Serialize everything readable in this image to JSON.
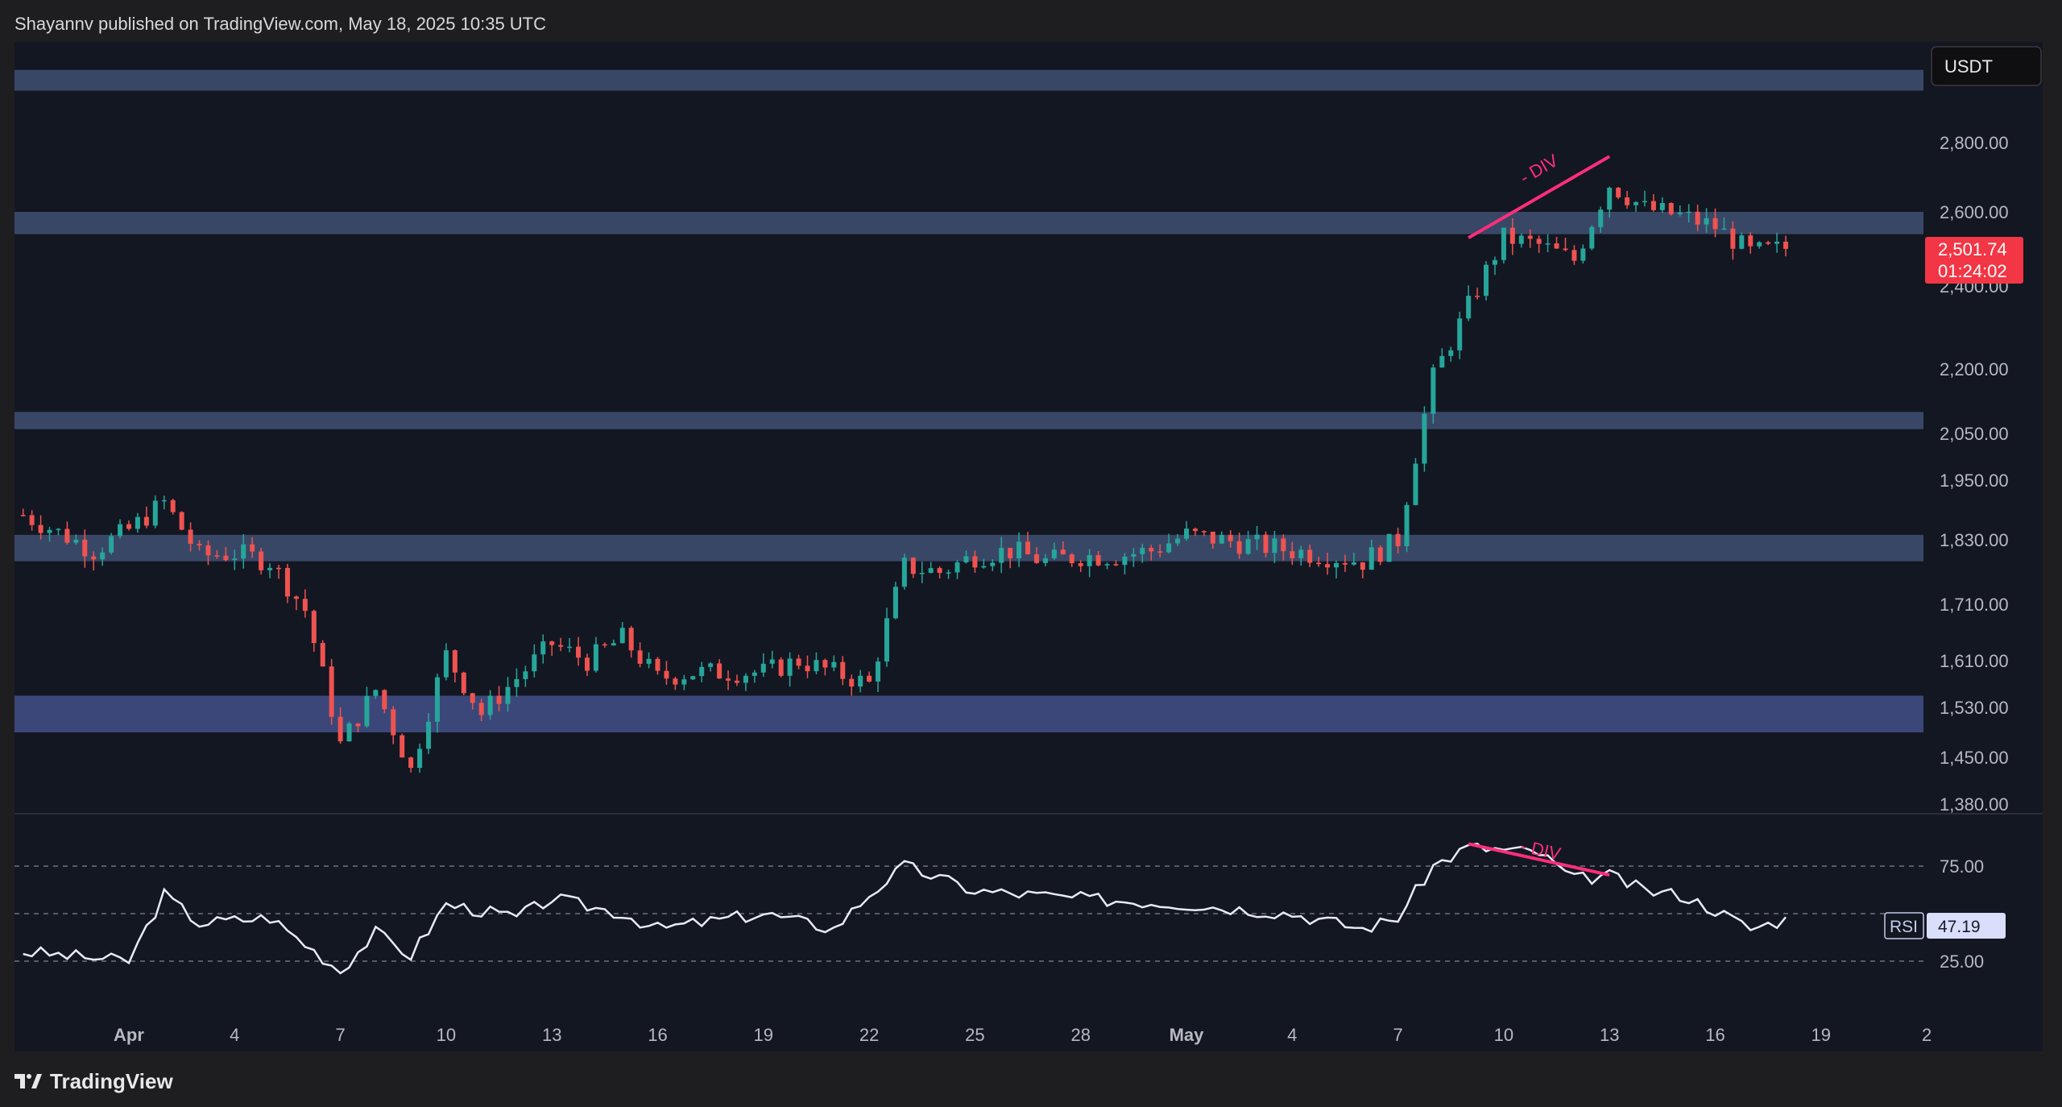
{
  "header": {
    "publisher_line": "Shayannv published on TradingView.com, May 18, 2025 10:35 UTC"
  },
  "footer": {
    "brand": "TradingView"
  },
  "chart_data": {
    "type": "candlestick",
    "currency": "USDT",
    "price_axis_ticks": [
      "2,800.00",
      "2,600.00",
      "2,400.00",
      "2,200.00",
      "2,050.00",
      "1,950.00",
      "1,830.00",
      "1,710.00",
      "1,610.00",
      "1,530.00",
      "1,450.00",
      "1,380.00"
    ],
    "price_axis_values": [
      2800,
      2600,
      2400,
      2200,
      2050,
      1950,
      1830,
      1710,
      1610,
      1530,
      1450,
      1380
    ],
    "current_price": {
      "value": 2501.74,
      "label": "2,501.74",
      "countdown": "01:24:02"
    },
    "time_axis_labels": [
      "Apr",
      "4",
      "7",
      "10",
      "13",
      "16",
      "19",
      "22",
      "25",
      "28",
      "May",
      "4",
      "7",
      "10",
      "13",
      "16",
      "19",
      "2"
    ],
    "zones": [
      {
        "low": 2950,
        "high": 3010
      },
      {
        "low": 2540,
        "high": 2600
      },
      {
        "low": 2060,
        "high": 2100
      },
      {
        "low": 1790,
        "high": 1840
      },
      {
        "low": 1490,
        "high": 1550
      }
    ],
    "price_annotation": {
      "text": "- DIV",
      "from": {
        "x": "May 9",
        "y": 2530
      },
      "to": {
        "x": "May 13",
        "y": 2760
      }
    },
    "candles_summary": [
      {
        "date": "Mar 29",
        "close": 1880
      },
      {
        "date": "Mar 31",
        "close": 1810
      },
      {
        "date": "Apr 1",
        "close": 1850
      },
      {
        "date": "Apr 2",
        "close": 1905
      },
      {
        "date": "Apr 3",
        "close": 1800
      },
      {
        "date": "Apr 4",
        "close": 1805
      },
      {
        "date": "Apr 5",
        "close": 1790
      },
      {
        "date": "Apr 6",
        "close": 1700
      },
      {
        "date": "Apr 7",
        "close": 1470
      },
      {
        "date": "Apr 8",
        "close": 1560
      },
      {
        "date": "Apr 9",
        "close": 1430
      },
      {
        "date": "Apr 10",
        "close": 1620
      },
      {
        "date": "Apr 11",
        "close": 1520
      },
      {
        "date": "Apr 12",
        "close": 1580
      },
      {
        "date": "Apr 13",
        "close": 1640
      },
      {
        "date": "Apr 14",
        "close": 1610
      },
      {
        "date": "Apr 15",
        "close": 1650
      },
      {
        "date": "Apr 16",
        "close": 1580
      },
      {
        "date": "Apr 17",
        "close": 1590
      },
      {
        "date": "Apr 18",
        "close": 1590
      },
      {
        "date": "Apr 19",
        "close": 1590
      },
      {
        "date": "Apr 20",
        "close": 1610
      },
      {
        "date": "Apr 21",
        "close": 1590
      },
      {
        "date": "Apr 22",
        "close": 1570
      },
      {
        "date": "Apr 23",
        "close": 1780
      },
      {
        "date": "Apr 24",
        "close": 1770
      },
      {
        "date": "Apr 25",
        "close": 1800
      },
      {
        "date": "Apr 26",
        "close": 1810
      },
      {
        "date": "Apr 27",
        "close": 1790
      },
      {
        "date": "Apr 28",
        "close": 1800
      },
      {
        "date": "Apr 29",
        "close": 1800
      },
      {
        "date": "Apr 30",
        "close": 1810
      },
      {
        "date": "May 1",
        "close": 1840
      },
      {
        "date": "May 2",
        "close": 1830
      },
      {
        "date": "May 3",
        "close": 1820
      },
      {
        "date": "May 4",
        "close": 1810
      },
      {
        "date": "May 5",
        "close": 1800
      },
      {
        "date": "May 6",
        "close": 1790
      },
      {
        "date": "May 7",
        "close": 1830
      },
      {
        "date": "May 8",
        "close": 2180
      },
      {
        "date": "May 9",
        "close": 2350
      },
      {
        "date": "May 10",
        "close": 2530
      },
      {
        "date": "May 11",
        "close": 2510
      },
      {
        "date": "May 12",
        "close": 2470
      },
      {
        "date": "May 13",
        "close": 2680
      },
      {
        "date": "May 14",
        "close": 2610
      },
      {
        "date": "May 15",
        "close": 2590
      },
      {
        "date": "May 16",
        "close": 2560
      },
      {
        "date": "May 17",
        "close": 2490
      },
      {
        "date": "May 18",
        "close": 2502
      }
    ],
    "rsi": {
      "label": "RSI",
      "value": "47.19",
      "levels": [
        75,
        50,
        25
      ],
      "level_labels": [
        "75.00",
        "25.00"
      ],
      "annotation": {
        "text": "- DIV",
        "from": {
          "x": "May 9",
          "y": 85
        },
        "to": {
          "x": "May 13",
          "y": 72
        }
      },
      "series_summary": [
        {
          "date": "Mar 29",
          "value": 30
        },
        {
          "date": "Apr 1",
          "value": 25
        },
        {
          "date": "Apr 2",
          "value": 60
        },
        {
          "date": "Apr 3",
          "value": 45
        },
        {
          "date": "Apr 5",
          "value": 48
        },
        {
          "date": "Apr 7",
          "value": 20
        },
        {
          "date": "Apr 8",
          "value": 40
        },
        {
          "date": "Apr 9",
          "value": 28
        },
        {
          "date": "Apr 10",
          "value": 55
        },
        {
          "date": "Apr 12",
          "value": 48
        },
        {
          "date": "Apr 13",
          "value": 58
        },
        {
          "date": "Apr 15",
          "value": 50
        },
        {
          "date": "Apr 16",
          "value": 42
        },
        {
          "date": "Apr 19",
          "value": 50
        },
        {
          "date": "Apr 21",
          "value": 42
        },
        {
          "date": "Apr 22",
          "value": 60
        },
        {
          "date": "Apr 23",
          "value": 75
        },
        {
          "date": "Apr 25",
          "value": 62
        },
        {
          "date": "Apr 28",
          "value": 58
        },
        {
          "date": "May 1",
          "value": 55
        },
        {
          "date": "May 4",
          "value": 50
        },
        {
          "date": "May 6",
          "value": 42
        },
        {
          "date": "May 7",
          "value": 48
        },
        {
          "date": "May 8",
          "value": 75
        },
        {
          "date": "May 9",
          "value": 85
        },
        {
          "date": "May 11",
          "value": 82
        },
        {
          "date": "May 12",
          "value": 68
        },
        {
          "date": "May 13",
          "value": 70
        },
        {
          "date": "May 14",
          "value": 62
        },
        {
          "date": "May 15",
          "value": 60
        },
        {
          "date": "May 16",
          "value": 52
        },
        {
          "date": "May 17",
          "value": 42
        },
        {
          "date": "May 18",
          "value": 47
        }
      ]
    },
    "colors": {
      "background": "#131722",
      "zone": "#3b4a6b",
      "zone_bottom": "#3e4a7e",
      "up": "#26a69a",
      "down": "#ef5350",
      "annotation": "#ff2e7a",
      "rsi_line": "#e8eaf6",
      "price_tag": "#f23645"
    }
  }
}
